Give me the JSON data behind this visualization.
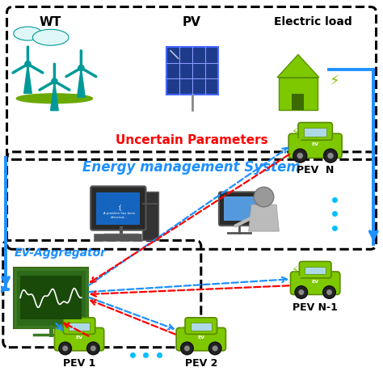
{
  "bg_color": "#ffffff",
  "box1_label": "Uncertain Parameters",
  "box1_label_color": "#ff0000",
  "box2_label": "Energy management System",
  "box2_label_color": "#1e90ff",
  "box3_label": "EV-Aggregator",
  "box3_label_color": "#1e90ff",
  "wt_color": "#009999",
  "pv_dark": "#1e3a8a",
  "ev_green": "#7ec800",
  "ev_dark": "#5a9200",
  "arrow_blue": "#1e90ff",
  "arrow_red": "#ff0000",
  "dot_cyan": "#00bfff",
  "agg_green": "#2d6b1a",
  "computer_dark": "#222222",
  "computer_screen": "#1565c0",
  "person_screen": "#5599dd",
  "font_title": 11,
  "font_label": 9
}
